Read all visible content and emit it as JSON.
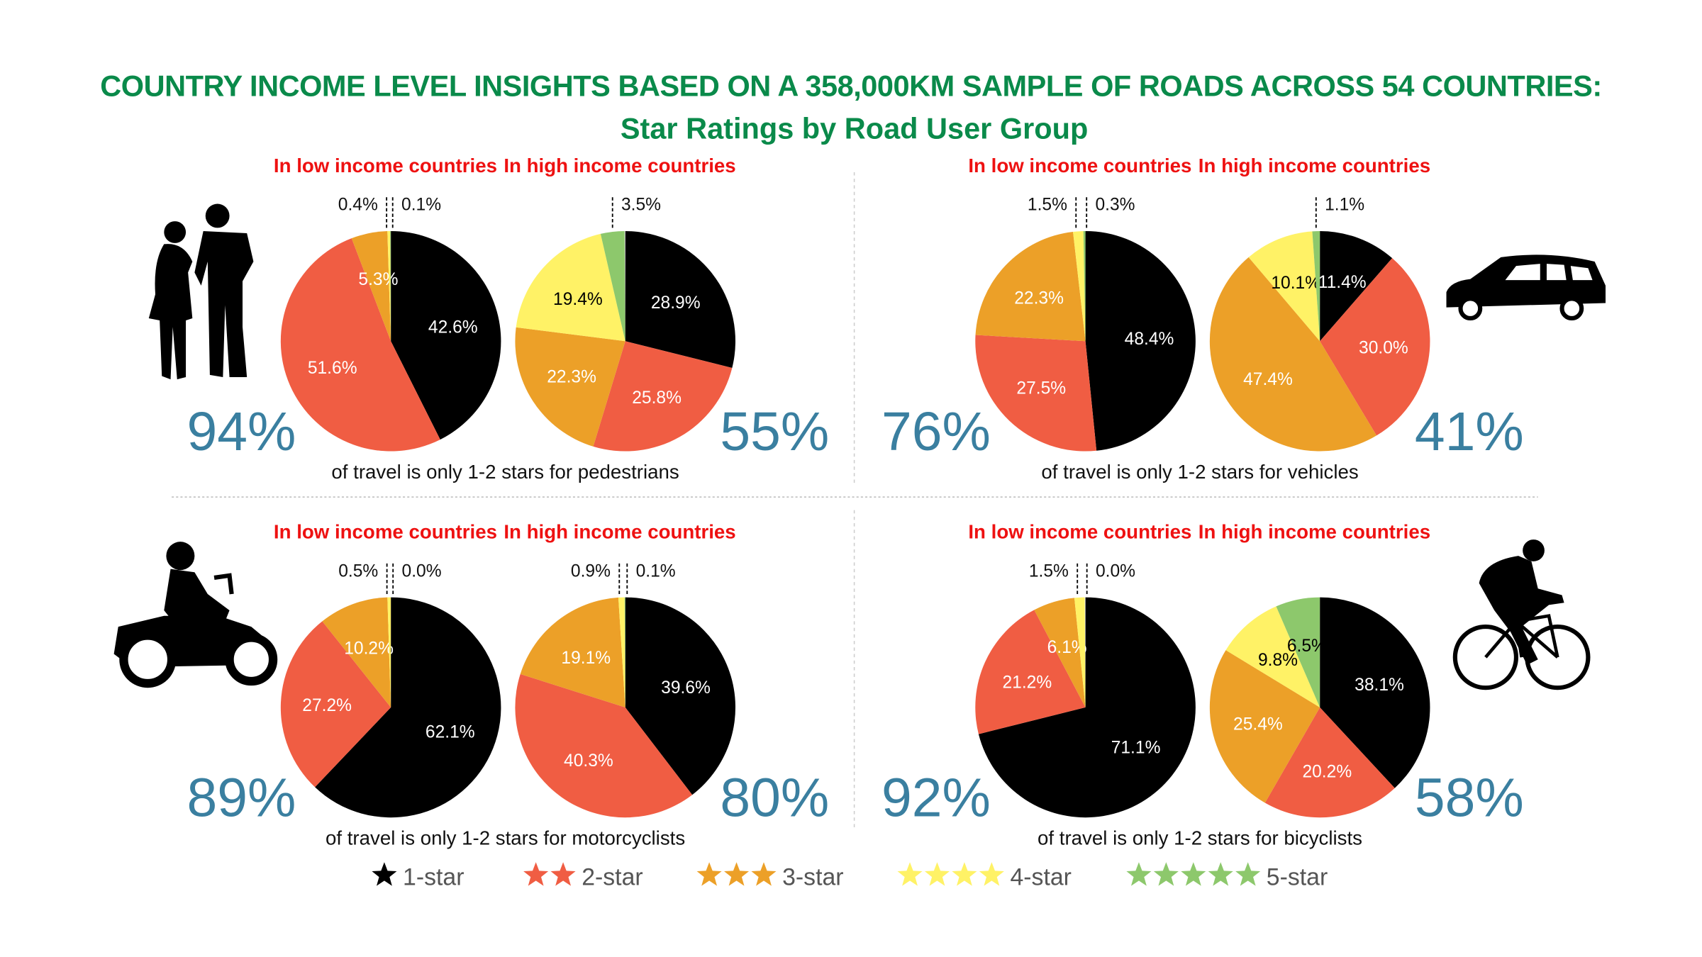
{
  "chart_data": {
    "type": "pie",
    "title": "COUNTRY INCOME LEVEL INSIGHTS BASED ON A 358,000KM SAMPLE OF ROADS ACROSS 54 COUNTRIES:",
    "subtitle": "Star Ratings by Road User Group",
    "low_label": "In low income countries",
    "high_label": "In high income countries",
    "legend": [
      {
        "label": "1-star",
        "stars": 1,
        "color": "#000000"
      },
      {
        "label": "2-star",
        "stars": 2,
        "color": "#f05d43"
      },
      {
        "label": "3-star",
        "stars": 3,
        "color": "#eca028"
      },
      {
        "label": "4-star",
        "stars": 4,
        "color": "#fff266"
      },
      {
        "label": "5-star",
        "stars": 5,
        "color": "#8dc86c"
      }
    ],
    "groups": [
      {
        "name": "pedestrians",
        "caption": "of travel is only 1-2 stars for pedestrians",
        "low": {
          "values": [
            42.6,
            51.6,
            5.3,
            0.4,
            0.1
          ],
          "headline": "94%"
        },
        "high": {
          "values": [
            28.9,
            25.8,
            22.3,
            19.4,
            3.5
          ],
          "headline": "55%"
        }
      },
      {
        "name": "vehicles",
        "caption": "of travel is only 1-2 stars for vehicles",
        "low": {
          "values": [
            48.4,
            27.5,
            22.3,
            1.5,
            0.3
          ],
          "headline": "76%"
        },
        "high": {
          "values": [
            11.4,
            30.0,
            47.4,
            10.1,
            1.1
          ],
          "headline": "41%"
        }
      },
      {
        "name": "motorcyclists",
        "caption": "of travel is only 1-2 stars for motorcyclists",
        "low": {
          "values": [
            62.1,
            27.2,
            10.2,
            0.5,
            0.0
          ],
          "headline": "89%"
        },
        "high": {
          "values": [
            39.6,
            40.3,
            19.1,
            0.9,
            0.1
          ],
          "headline": "80%"
        }
      },
      {
        "name": "bicyclists",
        "caption": "of travel is only 1-2 stars for bicyclists",
        "low": {
          "values": [
            71.1,
            21.2,
            6.1,
            1.5,
            0.0
          ],
          "headline": "92%"
        },
        "high": {
          "values": [
            38.1,
            20.2,
            25.4,
            9.8,
            6.5
          ],
          "headline": "58%"
        }
      }
    ]
  }
}
